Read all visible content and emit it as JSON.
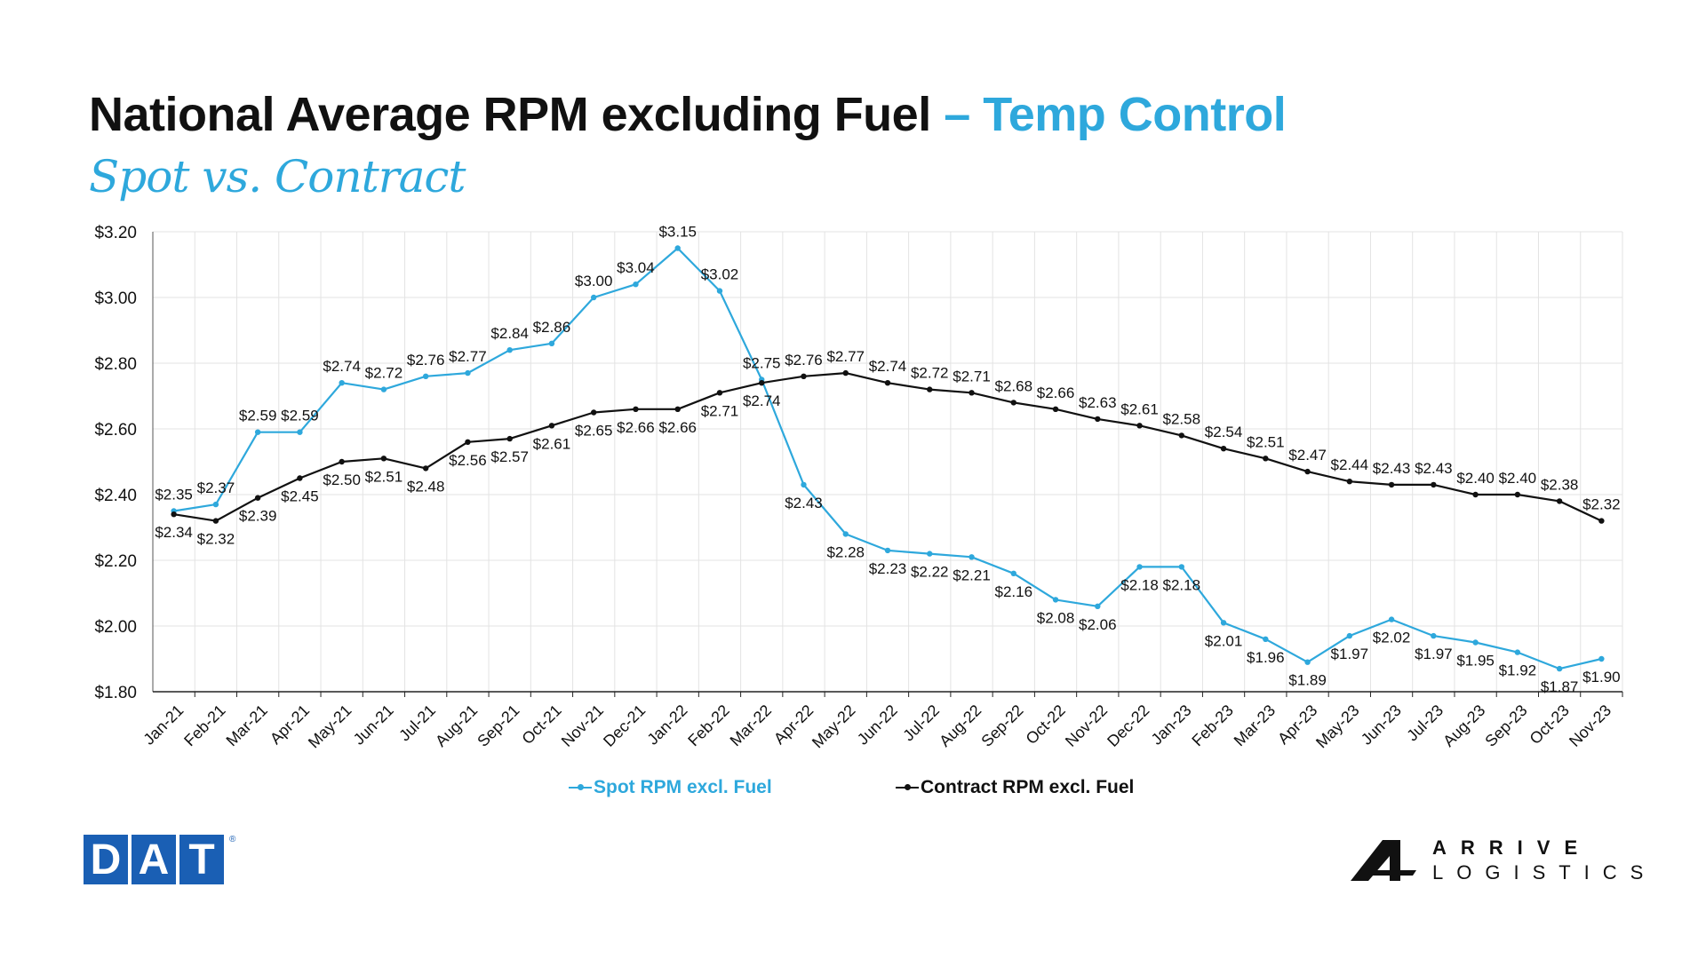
{
  "title": {
    "main": "National Average RPM excluding Fuel",
    "accent": "– Temp Control"
  },
  "subtitle": "Spot vs. Contract",
  "logos": {
    "dat": [
      "D",
      "A",
      "T"
    ],
    "dat_mark": "®",
    "arrive_line1": "ARRIVE",
    "arrive_line2": "LOGISTICS"
  },
  "colors": {
    "spot": "#2ea8dc",
    "contract": "#111111",
    "accent": "#2ea8dc",
    "dat_blue": "#1a5fb4",
    "grid": "#e3e3e3"
  },
  "chart_data": {
    "type": "line",
    "title": "",
    "xlabel": "",
    "ylabel": "",
    "ylim": [
      1.8,
      3.2
    ],
    "yticks": [
      "$1.80",
      "$2.00",
      "$2.20",
      "$2.40",
      "$2.60",
      "$2.80",
      "$3.00",
      "$3.20"
    ],
    "grid": true,
    "legend": "bottom-center",
    "categories": [
      "Jan-21",
      "Feb-21",
      "Mar-21",
      "Apr-21",
      "May-21",
      "Jun-21",
      "Jul-21",
      "Aug-21",
      "Sep-21",
      "Oct-21",
      "Nov-21",
      "Dec-21",
      "Jan-22",
      "Feb-22",
      "Mar-22",
      "Apr-22",
      "May-22",
      "Jun-22",
      "Jul-22",
      "Aug-22",
      "Sep-22",
      "Oct-22",
      "Nov-22",
      "Dec-22",
      "Jan-23",
      "Feb-23",
      "Mar-23",
      "Apr-23",
      "May-23",
      "Jun-23",
      "Jul-23",
      "Aug-23",
      "Sep-23",
      "Oct-23",
      "Nov-23"
    ],
    "series": [
      {
        "name": "Spot RPM excl. Fuel",
        "values": [
          2.35,
          2.37,
          2.59,
          2.59,
          2.74,
          2.72,
          2.76,
          2.77,
          2.84,
          2.86,
          3.0,
          3.04,
          3.15,
          3.02,
          2.75,
          2.43,
          2.28,
          2.23,
          2.22,
          2.21,
          2.16,
          2.08,
          2.06,
          2.18,
          2.18,
          2.01,
          1.96,
          1.89,
          1.97,
          2.02,
          1.97,
          1.95,
          1.92,
          1.87,
          1.9
        ],
        "labels": [
          "$2.35",
          "$2.37",
          "$2.59",
          "$2.59",
          "$2.74",
          "$2.72",
          "$2.76",
          "$2.77",
          "$2.84",
          "$2.86",
          "$3.00",
          "$3.04",
          "$3.15",
          "$3.02",
          "$2.75",
          "$2.43",
          "$2.28",
          "$2.23",
          "$2.22",
          "$2.21",
          "$2.16",
          "$2.08",
          "$2.06",
          "$2.18",
          "$2.18",
          "$2.01",
          "$1.96",
          "$1.89",
          "$1.97",
          "$2.02",
          "$1.97",
          "$1.95",
          "$1.92",
          "$1.87",
          "$1.90"
        ]
      },
      {
        "name": "Contract RPM excl. Fuel",
        "values": [
          2.34,
          2.32,
          2.39,
          2.45,
          2.5,
          2.51,
          2.48,
          2.56,
          2.57,
          2.61,
          2.65,
          2.66,
          2.66,
          2.71,
          2.74,
          2.76,
          2.77,
          2.74,
          2.72,
          2.71,
          2.68,
          2.66,
          2.63,
          2.61,
          2.58,
          2.54,
          2.51,
          2.47,
          2.44,
          2.43,
          2.43,
          2.4,
          2.4,
          2.38,
          2.32
        ],
        "labels": [
          "$2.34",
          "$2.32",
          "$2.39",
          "$2.45",
          "$2.50",
          "$2.51",
          "$2.48",
          "$2.56",
          "$2.57",
          "$2.61",
          "$2.65",
          "$2.66",
          "$2.66",
          "$2.71",
          "$2.74",
          "$2.76",
          "$2.77",
          "$2.74",
          "$2.72",
          "$2.71",
          "$2.68",
          "$2.66",
          "$2.63",
          "$2.61",
          "$2.58",
          "$2.54",
          "$2.51",
          "$2.47",
          "$2.44",
          "$2.43",
          "$2.43",
          "$2.40",
          "$2.40",
          "$2.38",
          "$2.32"
        ]
      }
    ]
  }
}
